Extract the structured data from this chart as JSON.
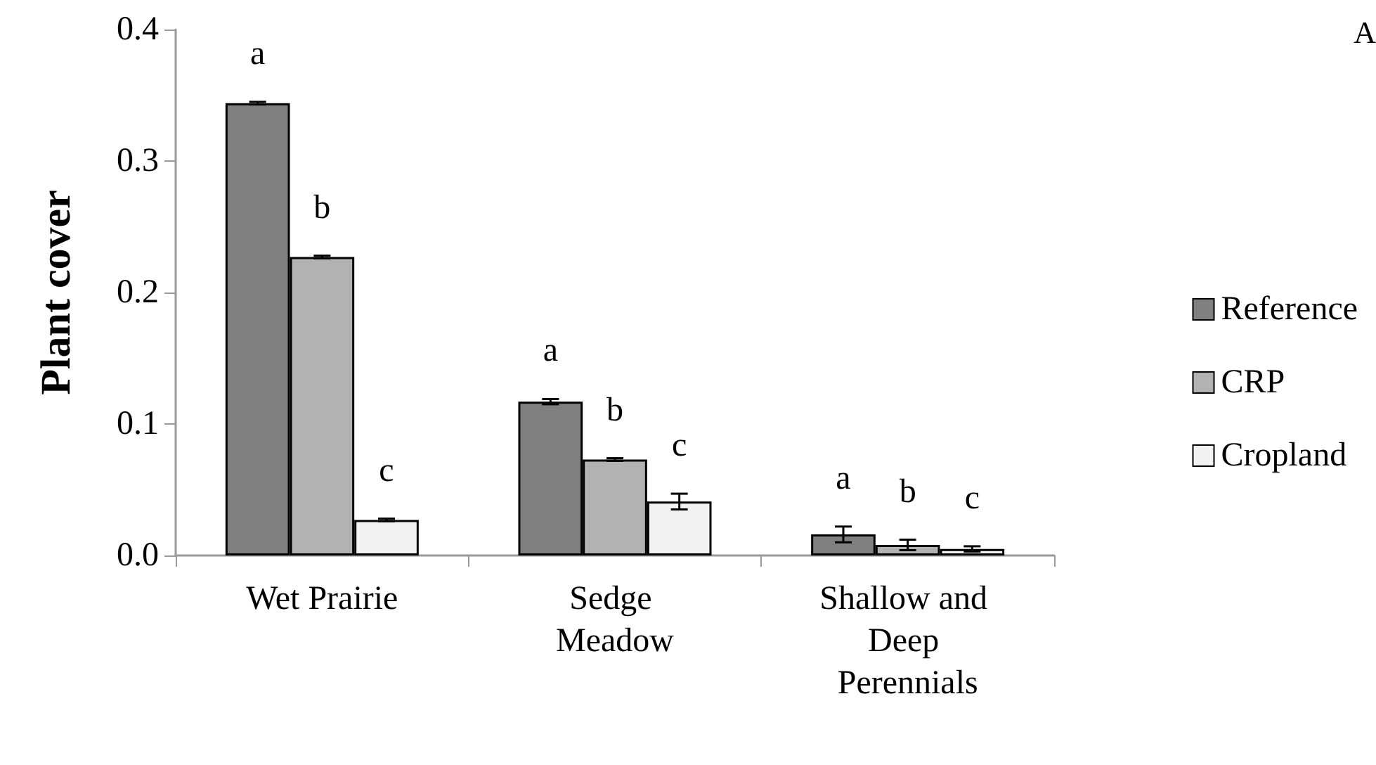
{
  "chart_data": {
    "type": "bar",
    "ylabel": "Plant cover",
    "categories": [
      "Wet Prairie",
      "Sedge Meadow",
      "Shallow and Deep Perennials"
    ],
    "series": [
      {
        "name": "Reference",
        "color": "#808080",
        "values": [
          0.344,
          0.117,
          0.016
        ],
        "errors": [
          0.001,
          0.002,
          0.006
        ]
      },
      {
        "name": "CRP",
        "color": "#b2b2b2",
        "values": [
          0.227,
          0.073,
          0.008
        ],
        "errors": [
          0.001,
          0.001,
          0.004
        ]
      },
      {
        "name": "Cropland",
        "color": "#f2f2f2",
        "values": [
          0.027,
          0.041,
          0.005
        ],
        "errors": [
          0.001,
          0.006,
          0.002
        ]
      }
    ],
    "ylim": [
      0,
      0.4
    ],
    "yticks": [
      {
        "value": 0,
        "label": "0.0"
      },
      {
        "value": 0.1,
        "label": "0.1"
      },
      {
        "value": 0.2,
        "label": "0.2"
      },
      {
        "value": 0.3,
        "label": "0.3"
      },
      {
        "value": 0.4,
        "label": "0.4"
      }
    ],
    "grid": false,
    "legend": "right",
    "annotations": [
      "a",
      "b",
      "c",
      "a",
      "b",
      "c",
      "a",
      "b",
      "c",
      "A"
    ]
  }
}
